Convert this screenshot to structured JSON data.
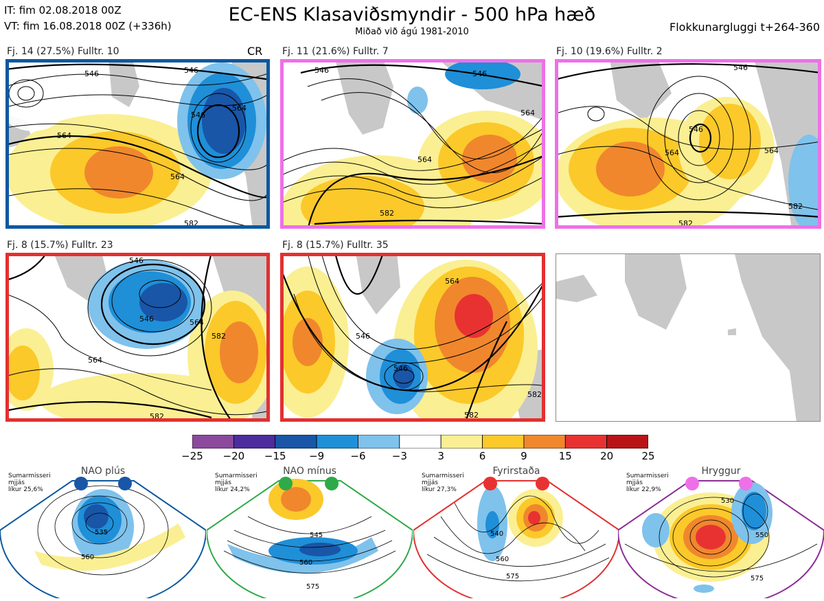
{
  "header": {
    "it_line": "IT: fim 02.08.2018 00Z",
    "vt_line": "VT: fim 16.08.2018 00Z  (+336h)",
    "title": "EC-ENS Klasaviðsmyndir - 500 hPa hæð",
    "subtitle": "Miðað við ágú 1981-2010",
    "window": "Flokkunargluggi t+264-360"
  },
  "colors": {
    "purple": "#8b4a9c",
    "indigo": "#4d2c9e",
    "deepblue": "#1956a8",
    "blue": "#1f8fd8",
    "lightblue": "#7fc2ec",
    "white": "#ffffff",
    "paleyellow": "#fbef93",
    "yellow": "#fbc92a",
    "orange": "#f0872d",
    "red": "#e83232",
    "darkred": "#b81418",
    "frame_blue": "#0c58a0",
    "frame_pink": "#ee70e8",
    "frame_red": "#e23030",
    "frame_green": "#2eaa48",
    "frame_purple": "#8b2d96",
    "land": "#c8c8c8"
  },
  "panels": [
    {
      "label": "Fj. 14 (27.5%)   Fulltr. 10",
      "tag": "CR",
      "frame": "frame_blue",
      "contours": [
        "546",
        "546",
        "564",
        "564",
        "564",
        "546",
        "582"
      ]
    },
    {
      "label": "Fj. 11 (21.6%)   Fulltr. 7",
      "tag": "",
      "frame": "frame_pink",
      "contours": [
        "546",
        "546",
        "564",
        "564",
        "582"
      ]
    },
    {
      "label": "Fj. 10 (19.6%)   Fulltr. 2",
      "tag": "",
      "frame": "frame_pink",
      "contours": [
        "546",
        "546",
        "564",
        "564",
        "582",
        "582"
      ]
    },
    {
      "label": "Fj. 8 (15.7%)   Fulltr. 23",
      "tag": "",
      "frame": "frame_red",
      "contours": [
        "546",
        "546",
        "564",
        "564",
        "582",
        "582"
      ]
    },
    {
      "label": "Fj. 8 (15.7%)   Fulltr. 35",
      "tag": "",
      "frame": "frame_red",
      "contours": [
        "546",
        "546",
        "564",
        "582",
        "582"
      ]
    }
  ],
  "colorbar": {
    "ticks": [
      "−25",
      "−20",
      "−15",
      "−9",
      "−6",
      "−3",
      "3",
      "6",
      "9",
      "15",
      "20",
      "25"
    ],
    "bins": [
      "purple",
      "indigo",
      "deepblue",
      "blue",
      "lightblue",
      "white",
      "paleyellow",
      "yellow",
      "orange",
      "red",
      "darkred"
    ]
  },
  "regimes": [
    {
      "name": "NAO plús",
      "season": "Sumarmisseri",
      "method": "mjjás",
      "prob": "líkur 25,6%",
      "frame": "frame_blue",
      "dots": "deepblue",
      "contours": [
        "535",
        "560"
      ]
    },
    {
      "name": "NAO mínus",
      "season": "Sumarmisseri",
      "method": "mjjás",
      "prob": "líkur 24,2%",
      "frame": "frame_green",
      "dots": "frame_green",
      "contours": [
        "545",
        "560",
        "575"
      ]
    },
    {
      "name": "Fyrirstaða",
      "season": "Sumarmisseri",
      "method": "mjjás",
      "prob": "líkur 27,3%",
      "frame": "frame_red",
      "dots": "red",
      "contours": [
        "540",
        "560",
        "575"
      ]
    },
    {
      "name": "Hryggur",
      "season": "Sumarmisseri",
      "method": "mjjás",
      "prob": "líkur 22,9%",
      "frame": "frame_purple",
      "dots": "frame_pink",
      "contours": [
        "530",
        "550",
        "575"
      ]
    }
  ]
}
